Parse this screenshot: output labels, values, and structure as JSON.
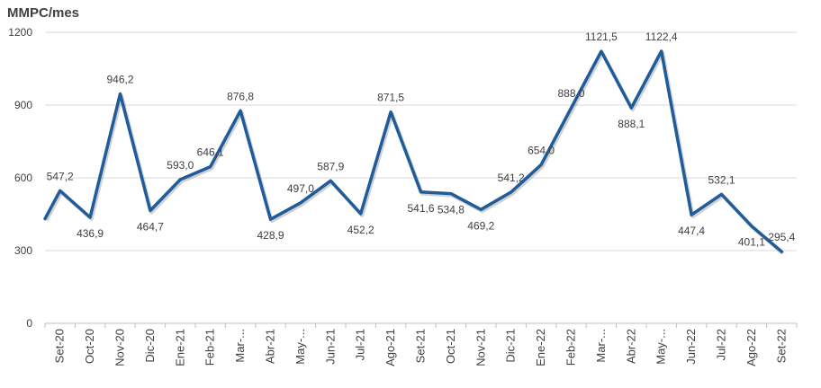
{
  "chart_data": {
    "type": "line",
    "ylabel": "MMPC/mes",
    "ylim": [
      0,
      1200
    ],
    "yticks": [
      "0",
      "300",
      "600",
      "900",
      "1200"
    ],
    "grid": true,
    "legend": "none",
    "line_color": "#1f5c99",
    "categories": [
      "Set-20",
      "Oct-20",
      "Nov-20",
      "Dic-20",
      "Ene-21",
      "Feb-21",
      "Mar-...",
      "Abr-21",
      "May-...",
      "Jun-21",
      "Jul-21",
      "Ago-21",
      "Set-21",
      "Oct-21",
      "Nov-21",
      "Dic-21",
      "Ene-22",
      "Feb-22",
      "Mar-...",
      "Abr-22",
      "May-...",
      "Jun-22",
      "Jul-22",
      "Ago-22",
      "Set-22"
    ],
    "series": [
      {
        "leading_value": 431,
        "values": [
          547.2,
          436.9,
          946.2,
          464.7,
          593.0,
          646.1,
          876.8,
          428.9,
          497.0,
          587.9,
          452.2,
          871.5,
          541.6,
          534.8,
          469.2,
          541.2,
          654.0,
          888.0,
          1121.5,
          888.1,
          1122.4,
          447.4,
          532.1,
          401.1,
          295.4
        ],
        "labels": [
          "547,2",
          "436,9",
          "946,2",
          "464,7",
          "593,0",
          "646,1",
          "876,8",
          "428,9",
          "497,0",
          "587,9",
          "452,2",
          "871,5",
          "541,6",
          "534,8",
          "469,2",
          "541,2",
          "654,0",
          "888,0",
          "1121,5",
          "888,1",
          "1122,4",
          "447,4",
          "532,1",
          "401,1",
          "295,4"
        ]
      }
    ]
  }
}
